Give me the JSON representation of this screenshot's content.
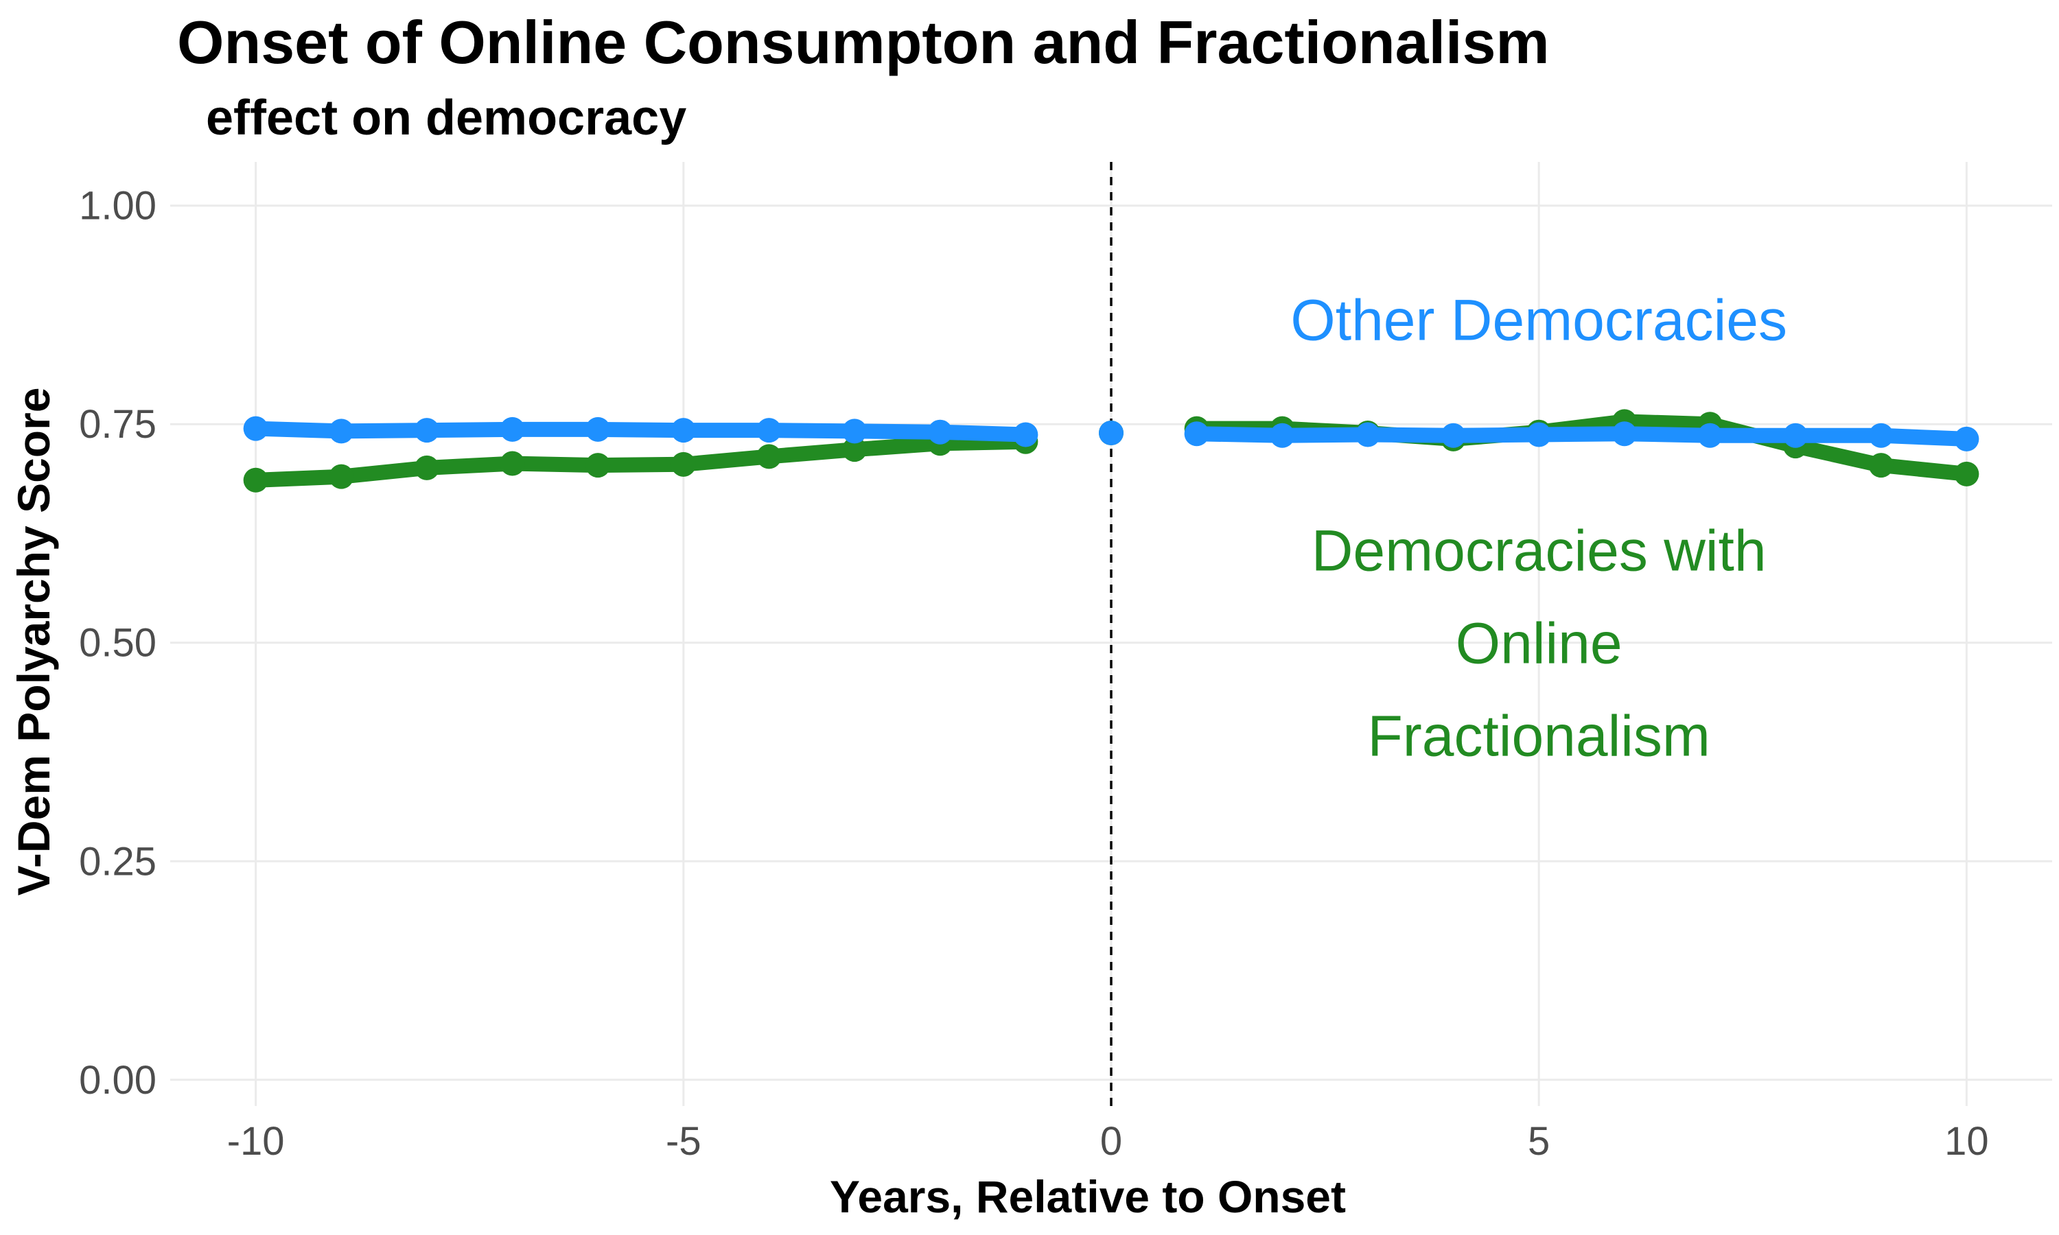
{
  "chart_data": {
    "type": "line",
    "title": "Onset of Online Consumpton and Fractionalism",
    "subtitle": "effect on democracy",
    "xlabel": "Years, Relative to Onset",
    "ylabel": "V-Dem Polyarchy Score",
    "xlim": [
      -11,
      11
    ],
    "ylim": [
      -0.03,
      1.05
    ],
    "x_ticks": [
      -10,
      -5,
      0,
      5,
      10
    ],
    "x_tick_labels": [
      "-10",
      "-5",
      "0",
      "5",
      "10"
    ],
    "y_ticks": [
      0,
      0.25,
      0.5,
      0.75,
      1.0
    ],
    "y_tick_labels": [
      "0.00",
      "0.25",
      "0.50",
      "0.75",
      "1.00"
    ],
    "grid": true,
    "legend": "none",
    "reference_line": {
      "x": 0,
      "style": "dashed"
    },
    "x": [
      -10,
      -9,
      -8,
      -7,
      -6,
      -5,
      -4,
      -3,
      -2,
      -1,
      0,
      1,
      2,
      3,
      4,
      5,
      6,
      7,
      8,
      9,
      10
    ],
    "series": [
      {
        "name": "Democracies with Online Fractionalism",
        "color": "#228b22",
        "values": [
          0.686,
          0.69,
          0.7,
          0.705,
          0.703,
          0.704,
          0.713,
          0.721,
          0.728,
          0.73,
          0.74,
          0.745,
          0.745,
          0.74,
          0.733,
          0.741,
          0.753,
          0.75,
          0.725,
          0.703,
          0.693
        ]
      },
      {
        "name": "Other Democracies",
        "color": "#1e90ff",
        "values": [
          0.745,
          0.742,
          0.743,
          0.744,
          0.744,
          0.743,
          0.743,
          0.742,
          0.741,
          0.738,
          0.74,
          0.739,
          0.737,
          0.738,
          0.737,
          0.738,
          0.739,
          0.737,
          0.737,
          0.737,
          0.733
        ]
      }
    ],
    "annotations": [
      {
        "lines": [
          "Other Democracies"
        ],
        "color": "#1e90ff",
        "x": 5,
        "y": 0.87
      },
      {
        "lines": [
          "Democracies with",
          "Online",
          "Fractionalism"
        ],
        "color": "#228b22",
        "x": 5,
        "y": 0.5
      }
    ]
  }
}
